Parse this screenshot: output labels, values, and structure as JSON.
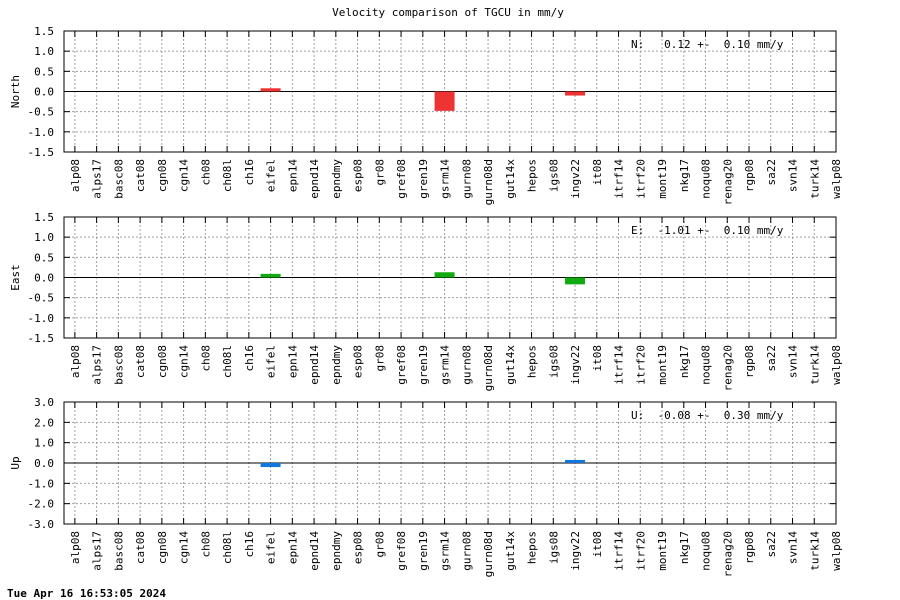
{
  "title": "Velocity comparison of TGCU in mm/y",
  "timestamp": "Tue Apr 16 16:53:05 2024",
  "chart_data": [
    {
      "type": "bar",
      "ylabel": "North",
      "ylim": [
        -1.5,
        1.5
      ],
      "yticks": [
        "1.5",
        "1.0",
        "0.5",
        "0.0",
        "-0.5",
        "-1.0",
        "-1.5"
      ],
      "ytick_values": [
        1.5,
        1.0,
        0.5,
        0.0,
        -0.5,
        -1.0,
        -1.5
      ],
      "annotation": "N:   0.12 +-  0.10 mm/y",
      "color": "#ee3333",
      "grid": true,
      "categories": [
        "alp08",
        "alps17",
        "basc08",
        "cat08",
        "cgn08",
        "cgn14",
        "ch08",
        "ch08l",
        "ch16",
        "eifel",
        "epn14",
        "epnd14",
        "epndmy",
        "esp08",
        "gr08",
        "gref08",
        "gren19",
        "gsrm14",
        "gurn08",
        "gurn08d",
        "gut14x",
        "hepos",
        "igs08",
        "ingv22",
        "it08",
        "itrf14",
        "itrf20",
        "mont19",
        "nkg17",
        "noqu08",
        "renag20",
        "rgp08",
        "sa22",
        "svn14",
        "turk14",
        "walp08"
      ],
      "values": [
        null,
        null,
        null,
        null,
        null,
        null,
        null,
        null,
        null,
        0.08,
        null,
        null,
        null,
        null,
        null,
        null,
        null,
        -0.48,
        null,
        null,
        null,
        null,
        null,
        -0.1,
        null,
        null,
        null,
        null,
        null,
        null,
        null,
        null,
        null,
        null,
        null,
        null
      ]
    },
    {
      "type": "bar",
      "ylabel": "East",
      "ylim": [
        -1.5,
        1.5
      ],
      "yticks": [
        "1.5",
        "1.0",
        "0.5",
        "0.0",
        "-0.5",
        "-1.0",
        "-1.5"
      ],
      "ytick_values": [
        1.5,
        1.0,
        0.5,
        0.0,
        -0.5,
        -1.0,
        -1.5
      ],
      "annotation": "E:  -1.01 +-  0.10 mm/y",
      "color": "#11aa11",
      "grid": true,
      "categories": [
        "alp08",
        "alps17",
        "basc08",
        "cat08",
        "cgn08",
        "cgn14",
        "ch08",
        "ch08l",
        "ch16",
        "eifel",
        "epn14",
        "epnd14",
        "epndmy",
        "esp08",
        "gr08",
        "gref08",
        "gren19",
        "gsrm14",
        "gurn08",
        "gurn08d",
        "gut14x",
        "hepos",
        "igs08",
        "ingv22",
        "it08",
        "itrf14",
        "itrf20",
        "mont19",
        "nkg17",
        "noqu08",
        "renag20",
        "rgp08",
        "sa22",
        "svn14",
        "turk14",
        "walp08"
      ],
      "values": [
        null,
        null,
        null,
        null,
        null,
        null,
        null,
        null,
        null,
        0.09,
        null,
        null,
        null,
        null,
        null,
        null,
        null,
        0.13,
        null,
        null,
        null,
        null,
        null,
        -0.17,
        null,
        null,
        null,
        null,
        null,
        null,
        null,
        null,
        null,
        null,
        null,
        null
      ]
    },
    {
      "type": "bar",
      "ylabel": "Up",
      "ylim": [
        -3.0,
        3.0
      ],
      "yticks": [
        "3.0",
        "2.0",
        "1.0",
        "0.0",
        "-1.0",
        "-2.0",
        "-3.0"
      ],
      "ytick_values": [
        3.0,
        2.0,
        1.0,
        0.0,
        -1.0,
        -2.0,
        -3.0
      ],
      "annotation": "U:  -0.08 +-  0.30 mm/y",
      "color": "#1177dd",
      "grid": true,
      "categories": [
        "alp08",
        "alps17",
        "basc08",
        "cat08",
        "cgn08",
        "cgn14",
        "ch08",
        "ch08l",
        "ch16",
        "eifel",
        "epn14",
        "epnd14",
        "epndmy",
        "esp08",
        "gr08",
        "gref08",
        "gren19",
        "gsrm14",
        "gurn08",
        "gurn08d",
        "gut14x",
        "hepos",
        "igs08",
        "ingv22",
        "it08",
        "itrf14",
        "itrf20",
        "mont19",
        "nkg17",
        "noqu08",
        "renag20",
        "rgp08",
        "sa22",
        "svn14",
        "turk14",
        "walp08"
      ],
      "values": [
        null,
        null,
        null,
        null,
        null,
        null,
        null,
        null,
        null,
        -0.2,
        null,
        null,
        null,
        null,
        null,
        null,
        null,
        null,
        null,
        null,
        null,
        null,
        null,
        0.15,
        null,
        null,
        null,
        null,
        null,
        null,
        null,
        null,
        null,
        null,
        null,
        null
      ]
    }
  ]
}
